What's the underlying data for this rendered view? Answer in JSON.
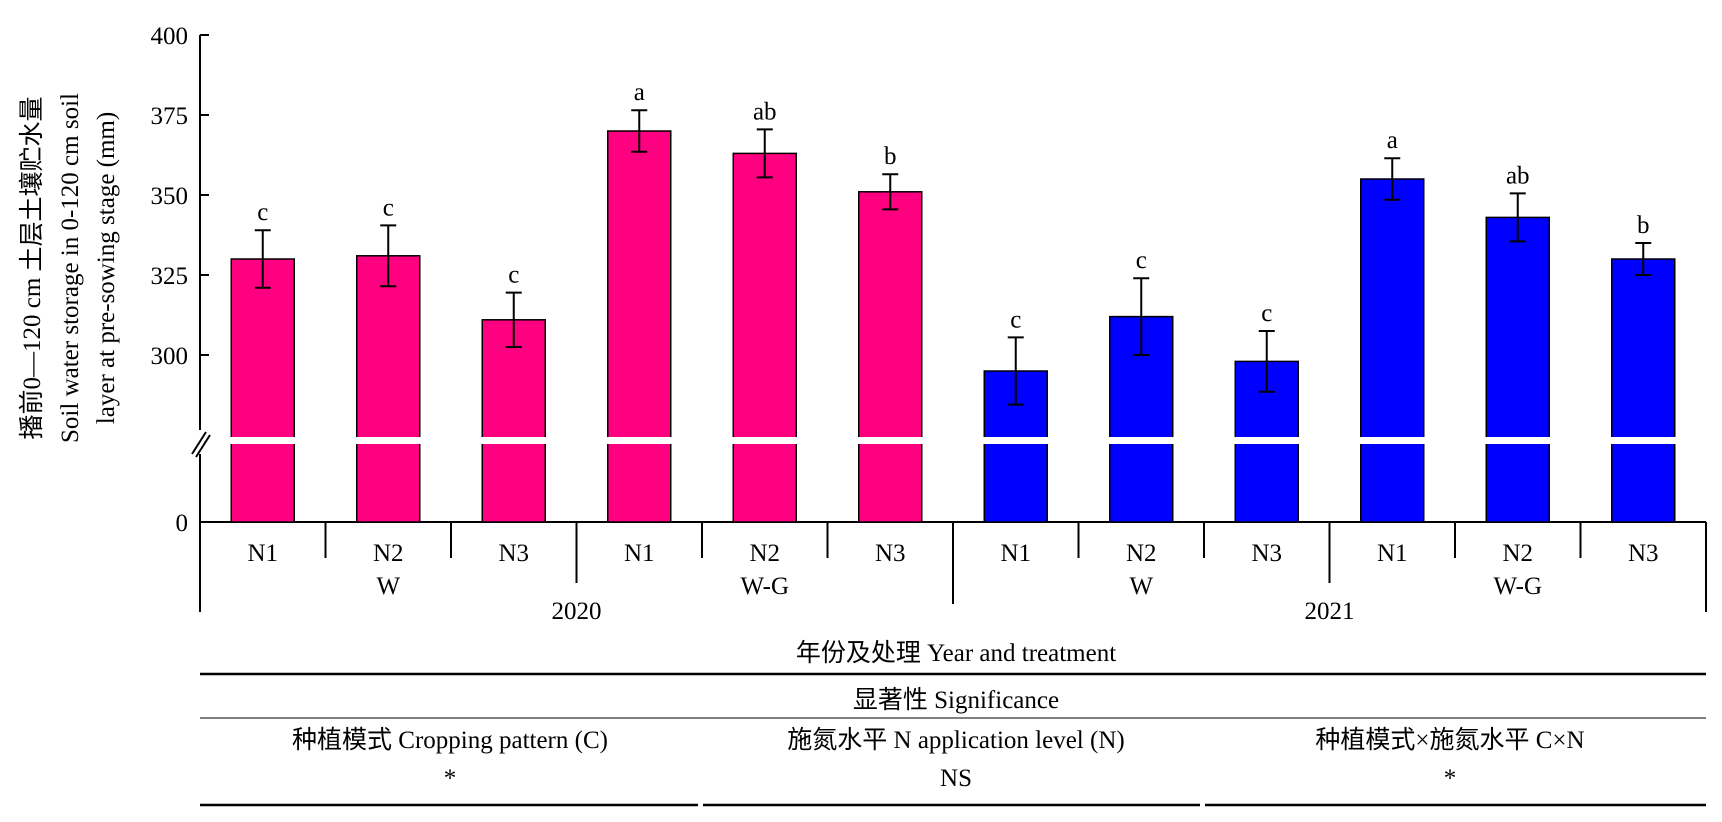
{
  "chart_data": {
    "type": "bar",
    "ylabel_lines": [
      "播前0—120 cm 土层土壤贮水量",
      "Soil water storage in 0-120 cm soil",
      "layer at pre-sowing stage (mm)"
    ],
    "xlabel": "年份及处理 Year and treatment",
    "y_ticks": [
      0,
      300,
      325,
      350,
      375,
      400
    ],
    "ylim": [
      0,
      400
    ],
    "axis_break": true,
    "categories": [
      "N1",
      "N2",
      "N3",
      "N1",
      "N2",
      "N3",
      "N1",
      "N2",
      "N3",
      "N1",
      "N2",
      "N3"
    ],
    "groups": [
      {
        "label": "W",
        "year": "2020"
      },
      {
        "label": "W-G",
        "year": "2020"
      },
      {
        "label": "W",
        "year": "2021"
      },
      {
        "label": "W-G",
        "year": "2021"
      }
    ],
    "years": [
      "2020",
      "2021"
    ],
    "series": [
      {
        "values": [
          330,
          331,
          311,
          370,
          363,
          351,
          null,
          null,
          null,
          null,
          null,
          null
        ],
        "color": "#ff0080"
      },
      {
        "values": [
          null,
          null,
          null,
          null,
          null,
          null,
          295,
          312,
          298,
          355,
          343,
          330
        ],
        "color": "#0000ff"
      }
    ],
    "errors": [
      9,
      9.5,
      8.5,
      6.5,
      7.5,
      5.5,
      10.5,
      12,
      9.5,
      6.5,
      7.5,
      5
    ],
    "letters": [
      "c",
      "c",
      "c",
      "a",
      "ab",
      "b",
      "c",
      "c",
      "c",
      "a",
      "ab",
      "b"
    ],
    "grid": false
  },
  "significance": {
    "title": "显著性 Significance",
    "columns": [
      {
        "header": "种植模式 Cropping pattern (C)",
        "value": "*"
      },
      {
        "header": "施氮水平 N application level (N)",
        "value": "NS"
      },
      {
        "header": "种植模式×施氮水平 C×N",
        "value": "*"
      }
    ]
  }
}
